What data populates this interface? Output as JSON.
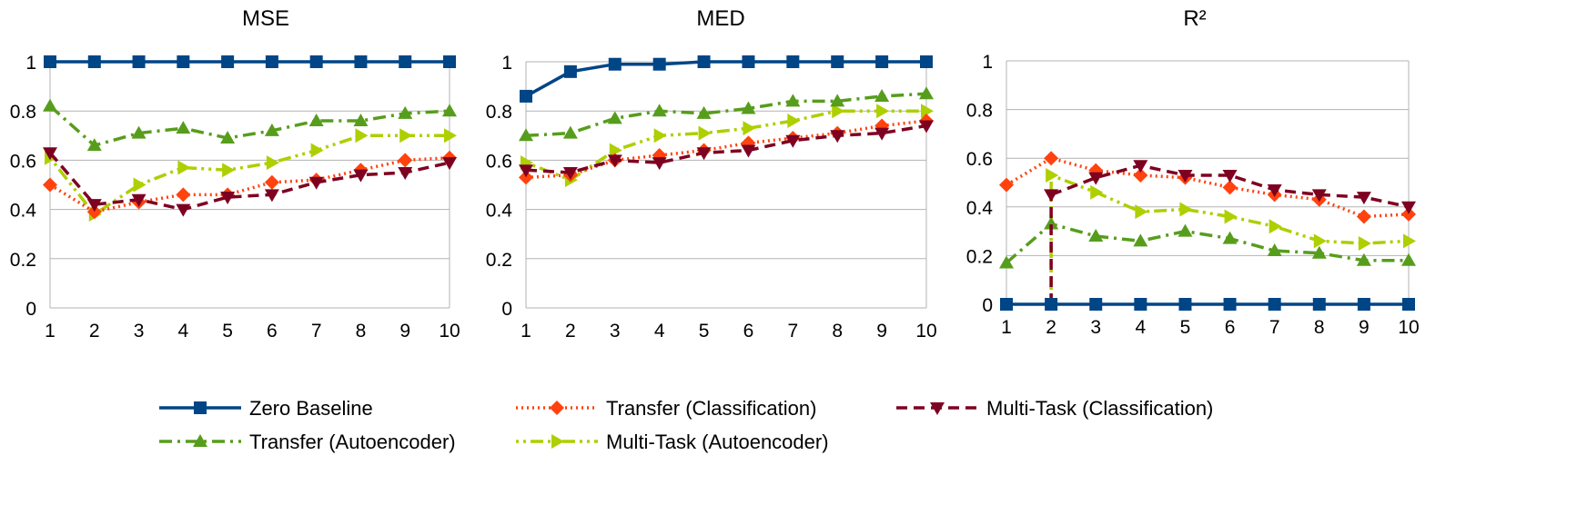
{
  "chart_data": [
    {
      "type": "line",
      "title": "MSE",
      "x": [
        1,
        2,
        3,
        4,
        5,
        6,
        7,
        8,
        9,
        10
      ],
      "ylim": [
        0,
        1
      ],
      "yticks": [
        0,
        0.2,
        0.4,
        0.6,
        0.8,
        1
      ],
      "ytick_labels": [
        "0",
        "0.2",
        "0.4",
        "0.6",
        "0.8",
        "1"
      ],
      "grid": true,
      "series": [
        {
          "name": "Zero Baseline",
          "values": [
            1,
            1,
            1,
            1,
            1,
            1,
            1,
            1,
            1,
            1
          ]
        },
        {
          "name": "Transfer (Classification)",
          "values": [
            0.5,
            0.39,
            0.43,
            0.46,
            0.46,
            0.51,
            0.52,
            0.56,
            0.6,
            0.61
          ]
        },
        {
          "name": "Multi-Task (Classification)",
          "values": [
            0.63,
            0.42,
            0.44,
            0.4,
            0.45,
            0.46,
            0.51,
            0.54,
            0.55,
            0.59
          ]
        },
        {
          "name": "Transfer (Autoencoder)",
          "values": [
            0.82,
            0.66,
            0.71,
            0.73,
            0.69,
            0.72,
            0.76,
            0.76,
            0.79,
            0.8
          ]
        },
        {
          "name": "Multi-Task (Autoencoder)",
          "values": [
            0.61,
            0.38,
            0.5,
            0.57,
            0.56,
            0.59,
            0.64,
            0.7,
            0.7,
            0.7
          ]
        }
      ]
    },
    {
      "type": "line",
      "title": "MED",
      "x": [
        1,
        2,
        3,
        4,
        5,
        6,
        7,
        8,
        9,
        10
      ],
      "ylim": [
        0,
        1
      ],
      "yticks": [
        0,
        0.2,
        0.4,
        0.6,
        0.8,
        1
      ],
      "ytick_labels": [
        "0",
        "0.2",
        "0.4",
        "0.6",
        "0.8",
        "1"
      ],
      "grid": true,
      "series": [
        {
          "name": "Zero Baseline",
          "values": [
            0.86,
            0.96,
            0.99,
            0.99,
            1,
            1,
            1,
            1,
            1,
            1
          ]
        },
        {
          "name": "Transfer (Classification)",
          "values": [
            0.53,
            0.54,
            0.6,
            0.62,
            0.64,
            0.67,
            0.69,
            0.71,
            0.74,
            0.76
          ]
        },
        {
          "name": "Multi-Task (Classification)",
          "values": [
            0.56,
            0.55,
            0.6,
            0.59,
            0.63,
            0.64,
            0.68,
            0.7,
            0.71,
            0.74
          ]
        },
        {
          "name": "Transfer (Autoencoder)",
          "values": [
            0.7,
            0.71,
            0.77,
            0.8,
            0.79,
            0.81,
            0.84,
            0.84,
            0.86,
            0.87
          ]
        },
        {
          "name": "Multi-Task (Autoencoder)",
          "values": [
            0.59,
            0.52,
            0.64,
            0.7,
            0.71,
            0.73,
            0.76,
            0.8,
            0.8,
            0.8
          ]
        }
      ]
    },
    {
      "type": "line",
      "title": "R²",
      "x": [
        1,
        2,
        3,
        4,
        5,
        6,
        7,
        8,
        9,
        10
      ],
      "ylim": [
        0,
        1
      ],
      "yticks": [
        0,
        0.2,
        0.4,
        0.6,
        0.8,
        1
      ],
      "ytick_labels": [
        "0",
        "0.2",
        "0.4",
        "0.6",
        "0.8",
        "1"
      ],
      "grid": true,
      "series": [
        {
          "name": "Zero Baseline",
          "values": [
            0,
            0,
            0,
            0,
            0,
            0,
            0,
            0,
            0,
            0
          ]
        },
        {
          "name": "Transfer (Classification)",
          "values": [
            0.49,
            0.6,
            0.55,
            0.53,
            0.52,
            0.48,
            0.45,
            0.43,
            0.36,
            0.37
          ]
        },
        {
          "name": "Multi-Task (Classification)",
          "values": [
            null,
            0.45,
            0.52,
            0.57,
            0.53,
            0.53,
            0.47,
            0.45,
            0.44,
            0.4
          ]
        },
        {
          "name": "Transfer (Autoencoder)",
          "values": [
            0.17,
            0.33,
            0.28,
            0.26,
            0.3,
            0.27,
            0.22,
            0.21,
            0.18,
            0.18
          ]
        },
        {
          "name": "Multi-Task (Autoencoder)",
          "values": [
            null,
            0.53,
            0.46,
            0.38,
            0.39,
            0.36,
            0.32,
            0.26,
            0.25,
            0.26
          ]
        }
      ],
      "annotations": "Multi-Task series drop to 0 at x=2"
    }
  ],
  "legend": {
    "placement": "bottom",
    "entries": [
      {
        "label": "Zero Baseline",
        "color": "#004586",
        "marker": "square",
        "dash": "solid"
      },
      {
        "label": "Transfer (Classification)",
        "color": "#ff420e",
        "marker": "diamond",
        "dash": "dot"
      },
      {
        "label": "Multi-Task (Classification)",
        "color": "#7e0021",
        "marker": "triangle-down",
        "dash": "dash"
      },
      {
        "label": "Transfer (Autoencoder)",
        "color": "#579d1c",
        "marker": "triangle-up",
        "dash": "dashdot"
      },
      {
        "label": "Multi-Task (Autoencoder)",
        "color": "#aecf00",
        "marker": "triangle-right",
        "dash": "dashdotdot"
      }
    ]
  }
}
